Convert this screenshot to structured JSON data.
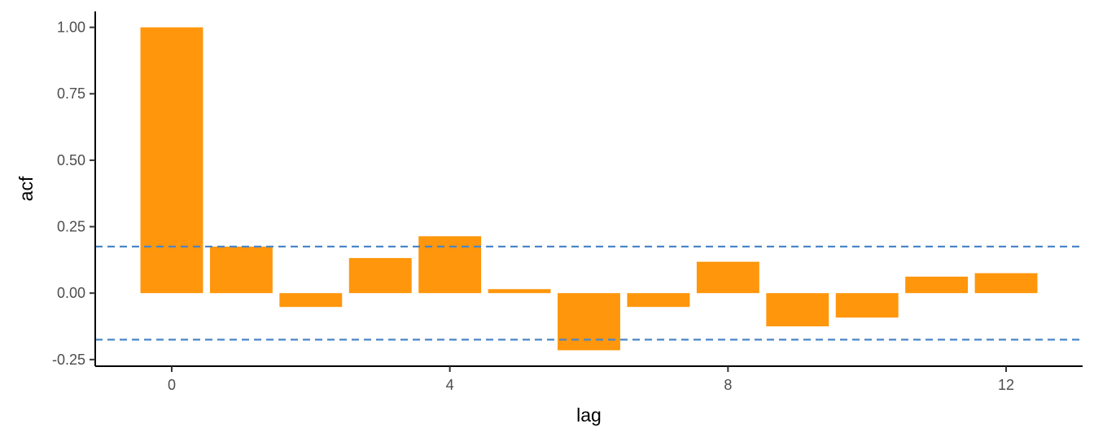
{
  "chart_data": {
    "type": "bar",
    "xlabel": "lag",
    "ylabel": "acf",
    "x": [
      0,
      1,
      2,
      3,
      4,
      5,
      6,
      7,
      8,
      9,
      10,
      11,
      12
    ],
    "values": [
      1.0,
      0.175,
      -0.052,
      0.132,
      0.214,
      0.015,
      -0.215,
      -0.052,
      0.118,
      -0.125,
      -0.092,
      0.062,
      0.075
    ],
    "xlim": [
      -1.1,
      13.1
    ],
    "ylim": [
      -0.275,
      1.06
    ],
    "x_ticks": [
      0,
      4,
      8,
      12
    ],
    "x_tick_labels": [
      "0",
      "4",
      "8",
      "12"
    ],
    "y_ticks": [
      1.0,
      0.75,
      0.5,
      0.25,
      0.0,
      -0.25
    ],
    "y_tick_labels": [
      "1.00",
      "0.75",
      "0.50",
      "0.25",
      "0.00",
      "-0.25"
    ],
    "confidence_band": [
      0.175,
      -0.175
    ],
    "bar_color": "#FF960B",
    "band_color": "#4A86C8",
    "grid": false
  }
}
